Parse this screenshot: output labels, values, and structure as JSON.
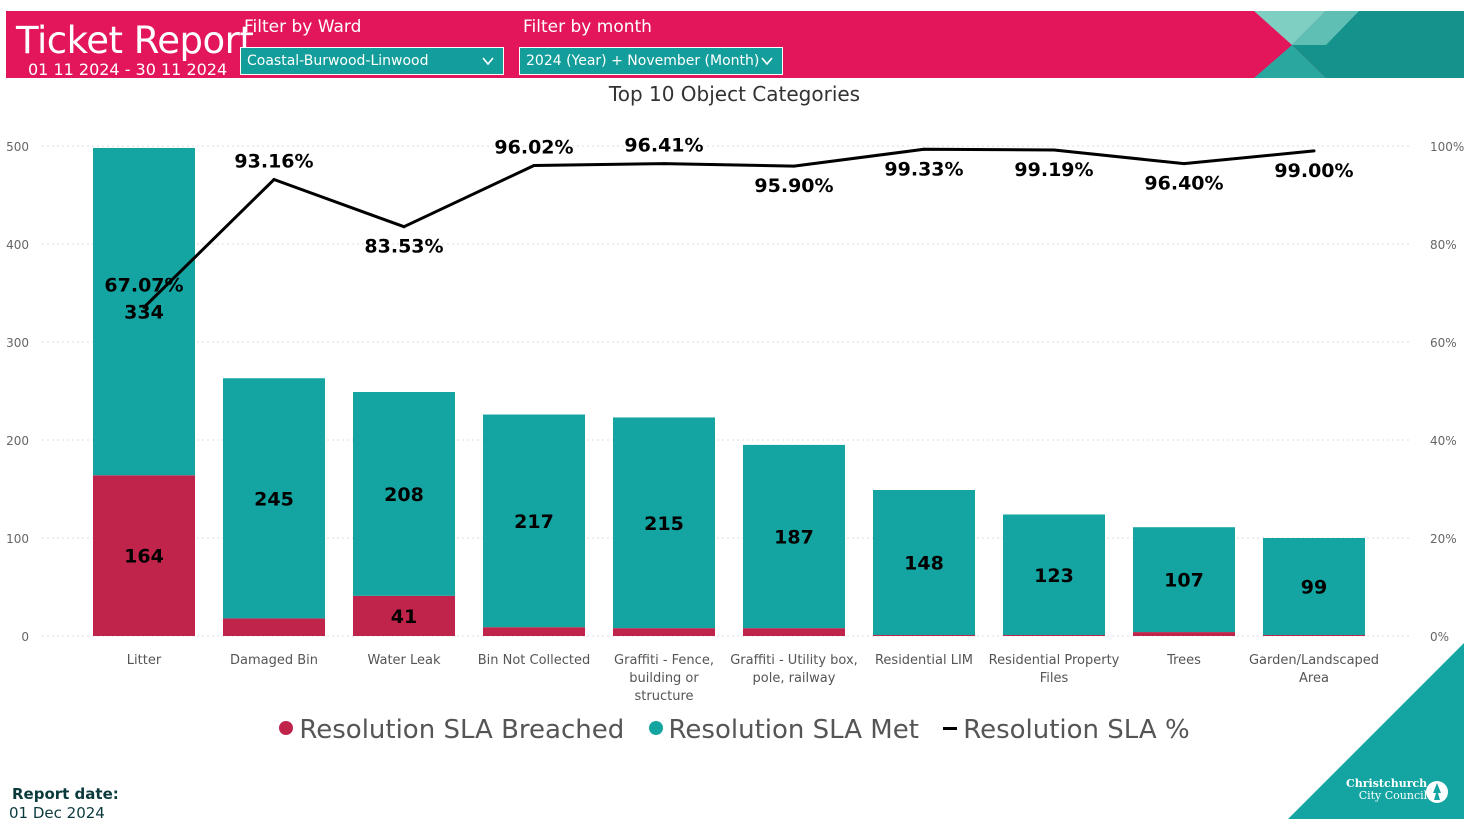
{
  "header": {
    "title": "Ticket Report",
    "date_range": "01 11 2024 - 30 11 2024",
    "ward_filter": {
      "label": "Filter by Ward",
      "value": "Coastal-Burwood-Linwood"
    },
    "month_filter": {
      "label": "Filter by month",
      "value": "2024 (Year) + November (Month)"
    }
  },
  "colors": {
    "header_bg": "#e3165b",
    "breached": "#c0244b",
    "met": "#14a5a2",
    "line": "#000000"
  },
  "legend": {
    "breached": "Resolution SLA Breached",
    "met": "Resolution SLA Met",
    "pct": "Resolution SLA %"
  },
  "chart_data": {
    "type": "bar",
    "stacked": true,
    "title": "Top 10 Object Categories",
    "categories": [
      [
        "Litter"
      ],
      [
        "Damaged Bin"
      ],
      [
        "Water Leak"
      ],
      [
        "Bin Not Collected"
      ],
      [
        "Graffiti - Fence,",
        "building or",
        "structure"
      ],
      [
        "Graffiti - Utility box,",
        "pole, railway"
      ],
      [
        "Residential LIM"
      ],
      [
        "Residential Property",
        "Files"
      ],
      [
        "Trees"
      ],
      [
        "Garden/Landscaped",
        "Area"
      ]
    ],
    "series": [
      {
        "name": "Resolution SLA Breached",
        "values": [
          164,
          18,
          41,
          9,
          8,
          8,
          1,
          1,
          4,
          1
        ],
        "labels": [
          "164",
          "",
          "41",
          "",
          "",
          "",
          "",
          "",
          "",
          ""
        ]
      },
      {
        "name": "Resolution SLA Met",
        "values": [
          334,
          245,
          208,
          217,
          215,
          187,
          148,
          123,
          107,
          99
        ],
        "labels": [
          "334",
          "245",
          "208",
          "217",
          "215",
          "187",
          "148",
          "123",
          "107",
          "99"
        ]
      }
    ],
    "line_series": {
      "name": "Resolution SLA %",
      "values": [
        67.07,
        93.16,
        83.53,
        96.02,
        96.41,
        95.9,
        99.33,
        99.19,
        96.4,
        99.0
      ],
      "labels": [
        "67.07%",
        "93.16%",
        "83.53%",
        "96.02%",
        "96.41%",
        "95.90%",
        "99.33%",
        "99.19%",
        "96.40%",
        "99.00%"
      ]
    },
    "y_left": {
      "ticks": [
        0,
        100,
        200,
        300,
        400,
        500
      ],
      "range": [
        0,
        500
      ]
    },
    "y_right": {
      "ticks": [
        "0%",
        "20%",
        "40%",
        "60%",
        "80%",
        "100%"
      ],
      "range": [
        0,
        100
      ]
    },
    "grid": true,
    "legend_position": "bottom"
  },
  "footer": {
    "report_date_label": "Report date:",
    "report_date": "01 Dec 2024",
    "logo_line1": "Christchurch",
    "logo_line2": "City Council"
  }
}
